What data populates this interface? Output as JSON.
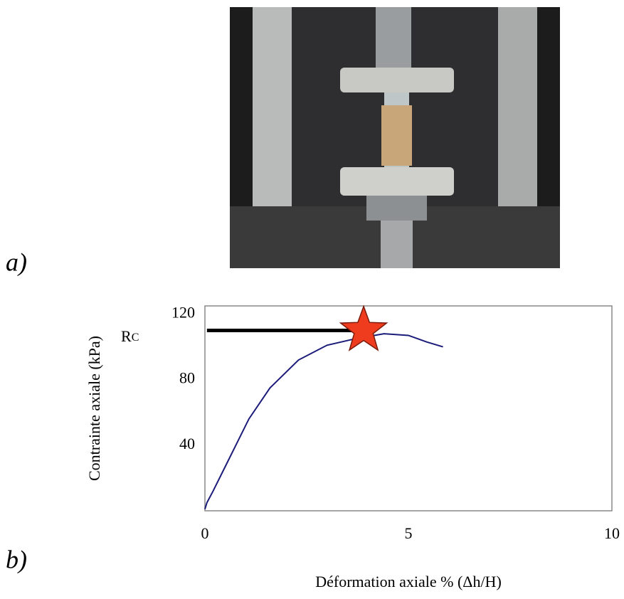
{
  "panel_a_label": "a)",
  "panel_b_label": "b)",
  "chart_data": {
    "type": "line",
    "y_label": "Contrainte axiale (kPa)",
    "x_label": "Déformation axiale  % (Δh/H)",
    "xlim": [
      0,
      10
    ],
    "xticks": [
      0,
      5,
      10
    ],
    "ylim": [
      0,
      125
    ],
    "yticks": [
      40,
      80,
      120
    ],
    "series": [
      {
        "color": "#1b1b7a",
        "x": [
          0,
          0.05,
          0.2,
          0.56,
          1.08,
          1.6,
          2.3,
          3.0,
          3.7,
          4.4,
          5.0,
          5.45,
          5.85
        ],
        "values": [
          1,
          5,
          12,
          30,
          56,
          75,
          92,
          101,
          105,
          108,
          107,
          103,
          100
        ]
      }
    ],
    "reference_line": {
      "y": 110,
      "x": [
        0.05,
        3.9
      ],
      "color": "#000000"
    },
    "marker": {
      "x": 3.9,
      "y": 110,
      "color": "#f03c1e",
      "label_main": "R",
      "label_sub": "C"
    }
  }
}
